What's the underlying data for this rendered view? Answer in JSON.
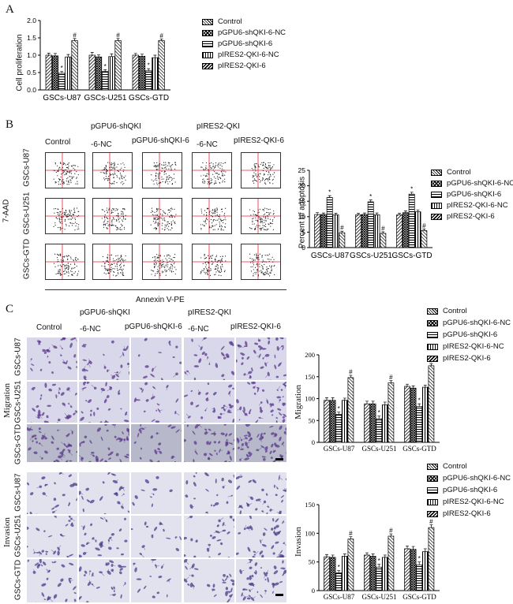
{
  "panels": {
    "a": "A",
    "b": "B",
    "c": "C"
  },
  "groups": [
    "Control",
    "pGPU6-shQKI-6-NC",
    "pGPU6-shQKI-6",
    "pIRES2-QKI-6-NC",
    "pIRES2-QKI-6"
  ],
  "cell_lines": [
    "GSCs-U87",
    "GSCs-U251",
    "GSCs-GTD"
  ],
  "column_headers": {
    "col1": "Control",
    "col2_line1": "pGPU6-shQKI",
    "col2_line2": "-6-NC",
    "col3": "pGPU6-shQKI-6",
    "col4_line1": "pIRES2-QKI",
    "col4_line2": "-6-NC",
    "col5": "pIRES2-QKI-6"
  },
  "flow": {
    "y_axis": "7-AAD",
    "x_axis": "Annexin V-PE"
  },
  "micro": {
    "migration_label": "Migration",
    "invasion_label": "Invasion"
  },
  "sig_markers": {
    "down": "*",
    "up": "#"
  },
  "chart_data": [
    {
      "id": "proliferation",
      "type": "bar",
      "ylabel": "Cell proliferation",
      "ylim": [
        0,
        2.0
      ],
      "yticks": [
        "0.0",
        "0.5",
        "1.0",
        "1.5",
        "2.0"
      ],
      "categories": [
        "GSCs-U87",
        "GSCs-U251",
        "GSCs-GTD"
      ],
      "series": [
        {
          "name": "Control",
          "values": [
            1.0,
            1.0,
            1.0
          ],
          "errors": [
            0.06,
            0.08,
            0.05
          ]
        },
        {
          "name": "pGPU6-shQKI-6-NC",
          "values": [
            0.98,
            0.95,
            0.97
          ],
          "errors": [
            0.07,
            0.06,
            0.06
          ]
        },
        {
          "name": "pGPU6-shQKI-6",
          "values": [
            0.48,
            0.53,
            0.55
          ],
          "errors": [
            0.05,
            0.05,
            0.06
          ]
        },
        {
          "name": "pIRES2-QKI-6-NC",
          "values": [
            0.95,
            0.96,
            0.93
          ],
          "errors": [
            0.07,
            0.08,
            0.07
          ]
        },
        {
          "name": "pIRES2-QKI-6",
          "values": [
            1.42,
            1.42,
            1.42
          ],
          "errors": [
            0.06,
            0.06,
            0.05
          ]
        }
      ],
      "sig": [
        [
          "",
          "",
          "*",
          "",
          "#"
        ],
        [
          "",
          "",
          "*",
          "",
          "#"
        ],
        [
          "",
          "",
          "*",
          "",
          "#"
        ]
      ]
    },
    {
      "id": "apoptosis",
      "type": "bar",
      "ylabel": "Percent of apoptosis",
      "ylim": [
        0,
        25
      ],
      "yticks": [
        "0",
        "5",
        "10",
        "15",
        "20",
        "25"
      ],
      "categories": [
        "GSCs-U87",
        "GSCs-U251",
        "GSCs-GTD"
      ],
      "series": [
        {
          "name": "Control",
          "values": [
            10.7,
            10.6,
            10.6
          ],
          "errors": [
            0.6,
            0.5,
            0.5
          ]
        },
        {
          "name": "pGPU6-shQKI-6-NC",
          "values": [
            10.7,
            10.7,
            11.3
          ],
          "errors": [
            0.5,
            0.5,
            0.6
          ]
        },
        {
          "name": "pGPU6-shQKI-6",
          "values": [
            16.2,
            14.8,
            17.3
          ],
          "errors": [
            0.6,
            0.6,
            0.6
          ]
        },
        {
          "name": "pIRES2-QKI-6-NC",
          "values": [
            10.6,
            10.6,
            11.6
          ],
          "errors": [
            0.5,
            0.6,
            0.6
          ]
        },
        {
          "name": "pIRES2-QKI-6",
          "values": [
            4.8,
            4.6,
            5.5
          ],
          "errors": [
            0.5,
            0.5,
            0.5
          ]
        }
      ],
      "sig": [
        [
          "",
          "",
          "*",
          "",
          "#"
        ],
        [
          "",
          "",
          "*",
          "",
          "#"
        ],
        [
          "",
          "",
          "*",
          "",
          "#"
        ]
      ]
    },
    {
      "id": "migration",
      "type": "bar",
      "ylabel": "Migration",
      "ylim": [
        0,
        200
      ],
      "yticks": [
        "0",
        "50",
        "100",
        "150",
        "200"
      ],
      "categories": [
        "GSCs-U87",
        "GSCs-U251",
        "GSCs-GTD"
      ],
      "series": [
        {
          "name": "Control",
          "values": [
            96,
            88,
            128
          ],
          "errors": [
            6,
            6,
            5
          ]
        },
        {
          "name": "pGPU6-shQKI-6-NC",
          "values": [
            96,
            88,
            124
          ],
          "errors": [
            6,
            6,
            5
          ]
        },
        {
          "name": "pGPU6-shQKI-6",
          "values": [
            64,
            54,
            82
          ],
          "errors": [
            5,
            6,
            6
          ]
        },
        {
          "name": "pIRES2-QKI-6-NC",
          "values": [
            96,
            86,
            126
          ],
          "errors": [
            5,
            6,
            5
          ]
        },
        {
          "name": "pIRES2-QKI-6",
          "values": [
            148,
            136,
            175
          ],
          "errors": [
            5,
            5,
            5
          ]
        }
      ],
      "sig": [
        [
          "",
          "",
          "*",
          "",
          "#"
        ],
        [
          "",
          "",
          "*",
          "",
          "#"
        ],
        [
          "",
          "",
          "*",
          "",
          "#"
        ]
      ]
    },
    {
      "id": "invasion",
      "type": "bar",
      "ylabel": "Invasion",
      "ylim": [
        0,
        150
      ],
      "yticks": [
        "0",
        "50",
        "100",
        "150"
      ],
      "categories": [
        "GSCs-U87",
        "GSCs-U251",
        "GSCs-GTD"
      ],
      "series": [
        {
          "name": "Control",
          "values": [
            59,
            62,
            73
          ],
          "errors": [
            4,
            4,
            5
          ]
        },
        {
          "name": "pGPU6-shQKI-6-NC",
          "values": [
            58,
            60,
            72
          ],
          "errors": [
            4,
            4,
            5
          ]
        },
        {
          "name": "pGPU6-shQKI-6",
          "values": [
            31,
            41,
            45
          ],
          "errors": [
            4,
            5,
            5
          ]
        },
        {
          "name": "pIRES2-QKI-6-NC",
          "values": [
            60,
            58,
            68
          ],
          "errors": [
            4,
            4,
            5
          ]
        },
        {
          "name": "pIRES2-QKI-6",
          "values": [
            90,
            95,
            110
          ],
          "errors": [
            4,
            4,
            5
          ]
        }
      ],
      "sig": [
        [
          "",
          "",
          "*",
          "",
          "#"
        ],
        [
          "",
          "",
          "*",
          "",
          "#"
        ],
        [
          "",
          "",
          "*",
          "",
          "#"
        ]
      ]
    }
  ]
}
